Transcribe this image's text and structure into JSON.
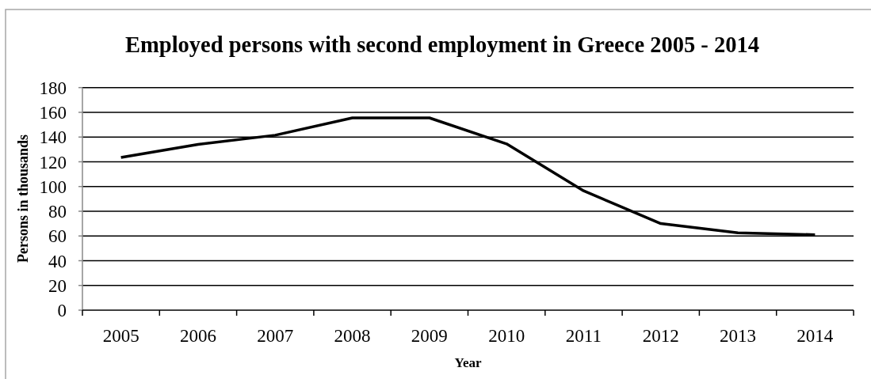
{
  "chart_data": {
    "type": "line",
    "title": "Employed persons with second employment in Greece 2005 - 2014",
    "xlabel": "Year",
    "ylabel": "Persons in thousands",
    "categories": [
      "2005",
      "2006",
      "2007",
      "2008",
      "2009",
      "2010",
      "2011",
      "2012",
      "2013",
      "2014"
    ],
    "series": [
      {
        "color": "#000000",
        "values": [
          123.5,
          134,
          141.5,
          155.5,
          155.5,
          134.5,
          96.5,
          70,
          62.5,
          61
        ]
      }
    ],
    "ylim": [
      0,
      180
    ],
    "yticks": [
      0,
      20,
      40,
      60,
      80,
      100,
      120,
      140,
      160,
      180
    ],
    "grid": "y",
    "line_style": "solid"
  }
}
